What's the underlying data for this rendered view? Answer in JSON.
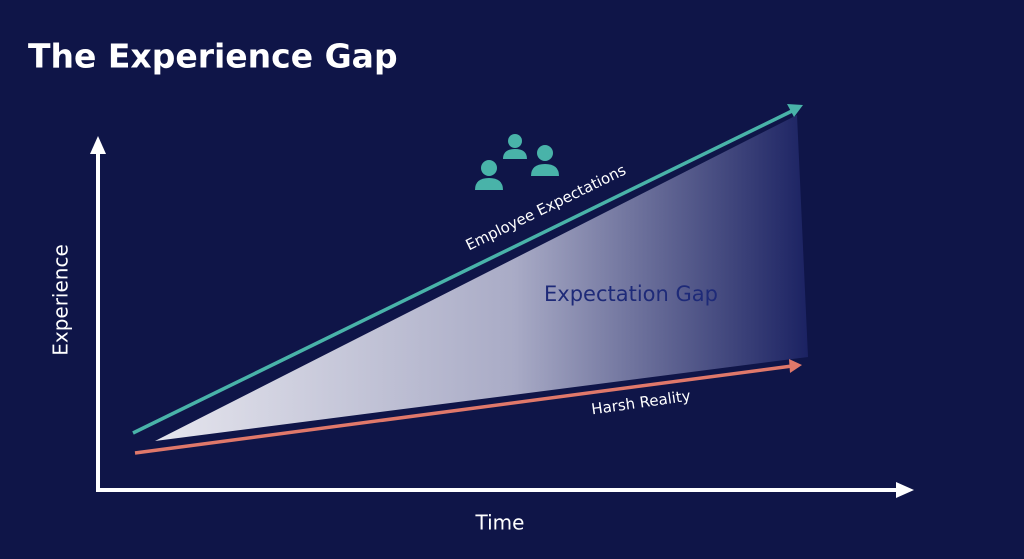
{
  "title": "The Experience Gap",
  "axes": {
    "x_label": "Time",
    "y_label": "Experience"
  },
  "lines": [
    {
      "label": "Employee Expectations"
    },
    {
      "label": "Harsh Reality"
    }
  ],
  "area": {
    "label": "Expectation Gap"
  }
}
